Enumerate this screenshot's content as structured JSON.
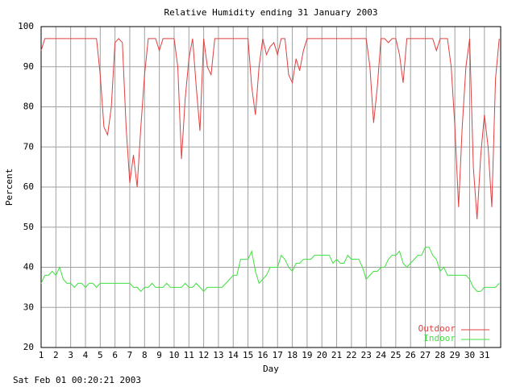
{
  "chart_data": {
    "type": "line",
    "title": "Relative Humidity ending 31 January 2003",
    "xlabel": "Day",
    "ylabel": "Percent",
    "footer": "Sat Feb 01 00:20:21 2003",
    "x": [
      1,
      1.25,
      1.5,
      1.75,
      2,
      2.25,
      2.5,
      2.75,
      3,
      3.25,
      3.5,
      3.75,
      4,
      4.25,
      4.5,
      4.75,
      5,
      5.25,
      5.5,
      5.75,
      6,
      6.25,
      6.5,
      6.75,
      7,
      7.25,
      7.5,
      7.75,
      8,
      8.25,
      8.5,
      8.75,
      9,
      9.25,
      9.5,
      9.75,
      10,
      10.25,
      10.5,
      10.75,
      11,
      11.25,
      11.5,
      11.75,
      12,
      12.25,
      12.5,
      12.75,
      13,
      13.25,
      13.5,
      13.75,
      14,
      14.25,
      14.5,
      14.75,
      15,
      15.25,
      15.5,
      15.75,
      16,
      16.25,
      16.5,
      16.75,
      17,
      17.25,
      17.5,
      17.75,
      18,
      18.25,
      18.5,
      18.75,
      19,
      19.25,
      19.5,
      19.75,
      20,
      20.25,
      20.5,
      20.75,
      21,
      21.25,
      21.5,
      21.75,
      22,
      22.25,
      22.5,
      22.75,
      23,
      23.25,
      23.5,
      23.75,
      24,
      24.25,
      24.5,
      24.75,
      25,
      25.25,
      25.5,
      25.75,
      26,
      26.25,
      26.5,
      26.75,
      27,
      27.25,
      27.5,
      27.75,
      28,
      28.25,
      28.5,
      28.75,
      29,
      29.25,
      29.5,
      29.75,
      30,
      30.25,
      30.5,
      30.75,
      31,
      31.25,
      31.5,
      31.75,
      32
    ],
    "series": [
      {
        "name": "Outdoor",
        "color": "#e04040",
        "values": [
          94,
          97,
          97,
          97,
          97,
          97,
          97,
          97,
          97,
          97,
          97,
          97,
          97,
          97,
          97,
          97,
          88,
          75,
          73,
          80,
          96,
          97,
          96,
          75,
          61,
          68,
          60,
          75,
          88,
          97,
          97,
          97,
          94,
          97,
          97,
          97,
          97,
          90,
          67,
          82,
          92,
          97,
          85,
          74,
          97,
          90,
          88,
          97,
          97,
          97,
          97,
          97,
          97,
          97,
          97,
          97,
          97,
          85,
          78,
          90,
          97,
          93,
          95,
          96,
          93,
          97,
          97,
          88,
          86,
          92,
          89,
          94,
          97,
          97,
          97,
          97,
          97,
          97,
          97,
          97,
          97,
          97,
          97,
          97,
          97,
          97,
          97,
          97,
          97,
          90,
          76,
          85,
          97,
          97,
          96,
          97,
          97,
          93,
          86,
          97,
          97,
          97,
          97,
          97,
          97,
          97,
          97,
          94,
          97,
          97,
          97,
          90,
          75,
          55,
          75,
          90,
          97,
          65,
          52,
          68,
          78,
          70,
          55,
          87,
          97
        ]
      },
      {
        "name": "Indoor",
        "color": "#40e040",
        "values": [
          36,
          38,
          38,
          39,
          38,
          40,
          37,
          36,
          36,
          35,
          36,
          36,
          35,
          36,
          36,
          35,
          36,
          36,
          36,
          36,
          36,
          36,
          36,
          36,
          36,
          35,
          35,
          34,
          35,
          35,
          36,
          35,
          35,
          35,
          36,
          35,
          35,
          35,
          35,
          36,
          35,
          35,
          36,
          35,
          34,
          35,
          35,
          35,
          35,
          35,
          36,
          37,
          38,
          38,
          42,
          42,
          42,
          44,
          39,
          36,
          37,
          38,
          40,
          40,
          40,
          43,
          42,
          40,
          39,
          41,
          41,
          42,
          42,
          42,
          43,
          43,
          43,
          43,
          43,
          41,
          42,
          41,
          41,
          43,
          42,
          42,
          42,
          40,
          37,
          38,
          39,
          39,
          40,
          40,
          42,
          43,
          43,
          44,
          41,
          40,
          41,
          42,
          43,
          43,
          45,
          45,
          43,
          42,
          39,
          40,
          38,
          38,
          38,
          38,
          38,
          38,
          37,
          35,
          34,
          34,
          35,
          35,
          35,
          35,
          36
        ]
      }
    ],
    "xlim": [
      1,
      32.1
    ],
    "xticks": [
      1,
      2,
      3,
      4,
      5,
      6,
      7,
      8,
      9,
      10,
      11,
      12,
      13,
      14,
      15,
      16,
      17,
      18,
      19,
      20,
      21,
      22,
      23,
      24,
      25,
      26,
      27,
      28,
      29,
      30,
      31
    ],
    "ylim": [
      20,
      100
    ],
    "yticks": [
      20,
      30,
      40,
      50,
      60,
      70,
      80,
      90,
      100
    ],
    "grid": true,
    "legend": "lower right"
  }
}
